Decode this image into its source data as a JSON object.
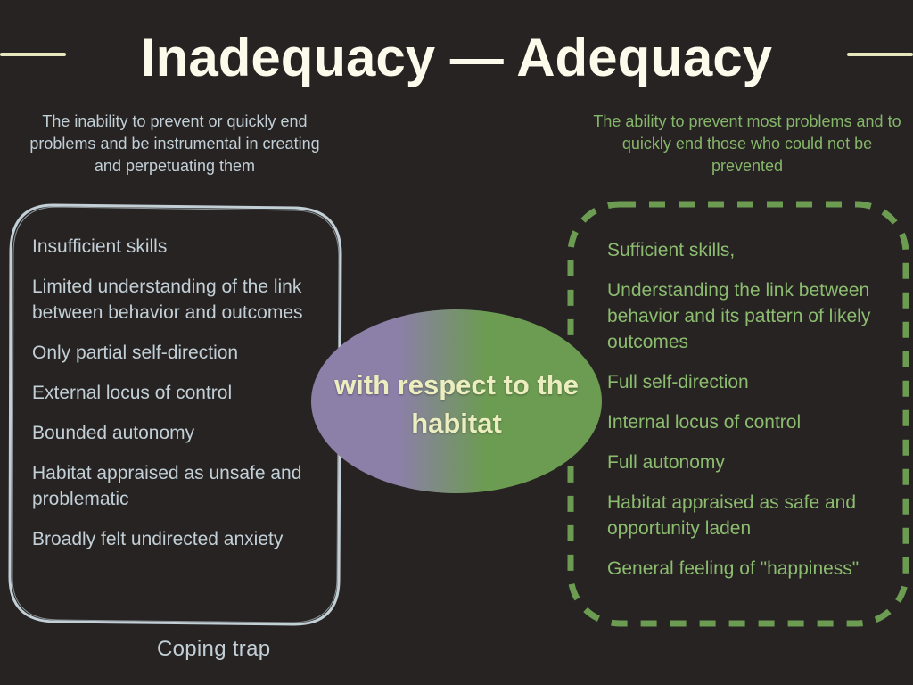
{
  "title": "Inadequacy — Adequacy",
  "left": {
    "subtitle": "The inability to prevent or quickly end problems and be instrumental in creating and perpetuating them",
    "items": [
      "Insufficient skills",
      "Limited understanding of the link between behavior and outcomes",
      "Only partial self-direction",
      "External locus of control",
      "Bounded autonomy",
      "Habitat appraised as unsafe and problematic",
      "Broadly felt undirected anxiety"
    ],
    "caption": "Coping trap"
  },
  "center": {
    "label": "with respect to the habitat"
  },
  "right": {
    "subtitle": "The ability to prevent most problems and to quickly end those who could not be prevented",
    "items": [
      "Sufficient skills,",
      "Understanding the link between behavior and its pattern of likely outcomes",
      "Full self-direction",
      "Internal locus of control",
      "Full autonomy",
      "Habitat appraised as safe and opportunity laden",
      "General feeling of \"happiness\""
    ]
  },
  "colors": {
    "background": "#262322",
    "title": "#fbfaeb",
    "rule": "#e7e7bf",
    "left_accent": "#c2cfd6",
    "right_accent": "#8cbc6f",
    "gradient_start": "#8c7fa8",
    "gradient_end": "#6c9b52",
    "center_text": "#eceec0"
  }
}
